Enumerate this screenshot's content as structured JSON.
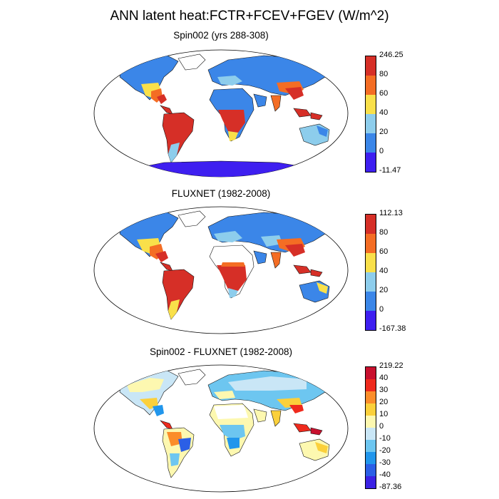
{
  "title": "ANN latent heat:FCTR+FCEV+FGEV (W/m^2)",
  "colors": {
    "ocean": "#ffffff",
    "coast": "#000000"
  },
  "panels": [
    {
      "title": "Spin002 (yrs 288-308)",
      "colorbar": {
        "colors": [
          "#d62f27",
          "#f46d24",
          "#f9e04a",
          "#8dcdec",
          "#3b86e8",
          "#3e1ff0"
        ],
        "labels": [
          "246.25",
          "80",
          "60",
          "40",
          "20",
          "0",
          "-11.47"
        ]
      }
    },
    {
      "title": "FLUXNET (1982-2008)",
      "colorbar": {
        "colors": [
          "#d62f27",
          "#f46d24",
          "#f9e04a",
          "#8dcdec",
          "#3b86e8",
          "#3e1ff0"
        ],
        "labels": [
          "112.13",
          "80",
          "60",
          "40",
          "20",
          "0",
          "-167.38"
        ]
      }
    },
    {
      "title": "Spin002 - FLUXNET (1982-2008)",
      "colorbar": {
        "colors": [
          "#c8102e",
          "#ef2a1d",
          "#fb8d2a",
          "#fbd03b",
          "#fdf8b0",
          "#c9e6f6",
          "#6dc6f0",
          "#2196ec",
          "#2b5fe6",
          "#3b22e4"
        ],
        "labels": [
          "219.22",
          "40",
          "30",
          "20",
          "10",
          "0",
          "-10",
          "-20",
          "-30",
          "-40",
          "-87.36"
        ]
      }
    }
  ]
}
